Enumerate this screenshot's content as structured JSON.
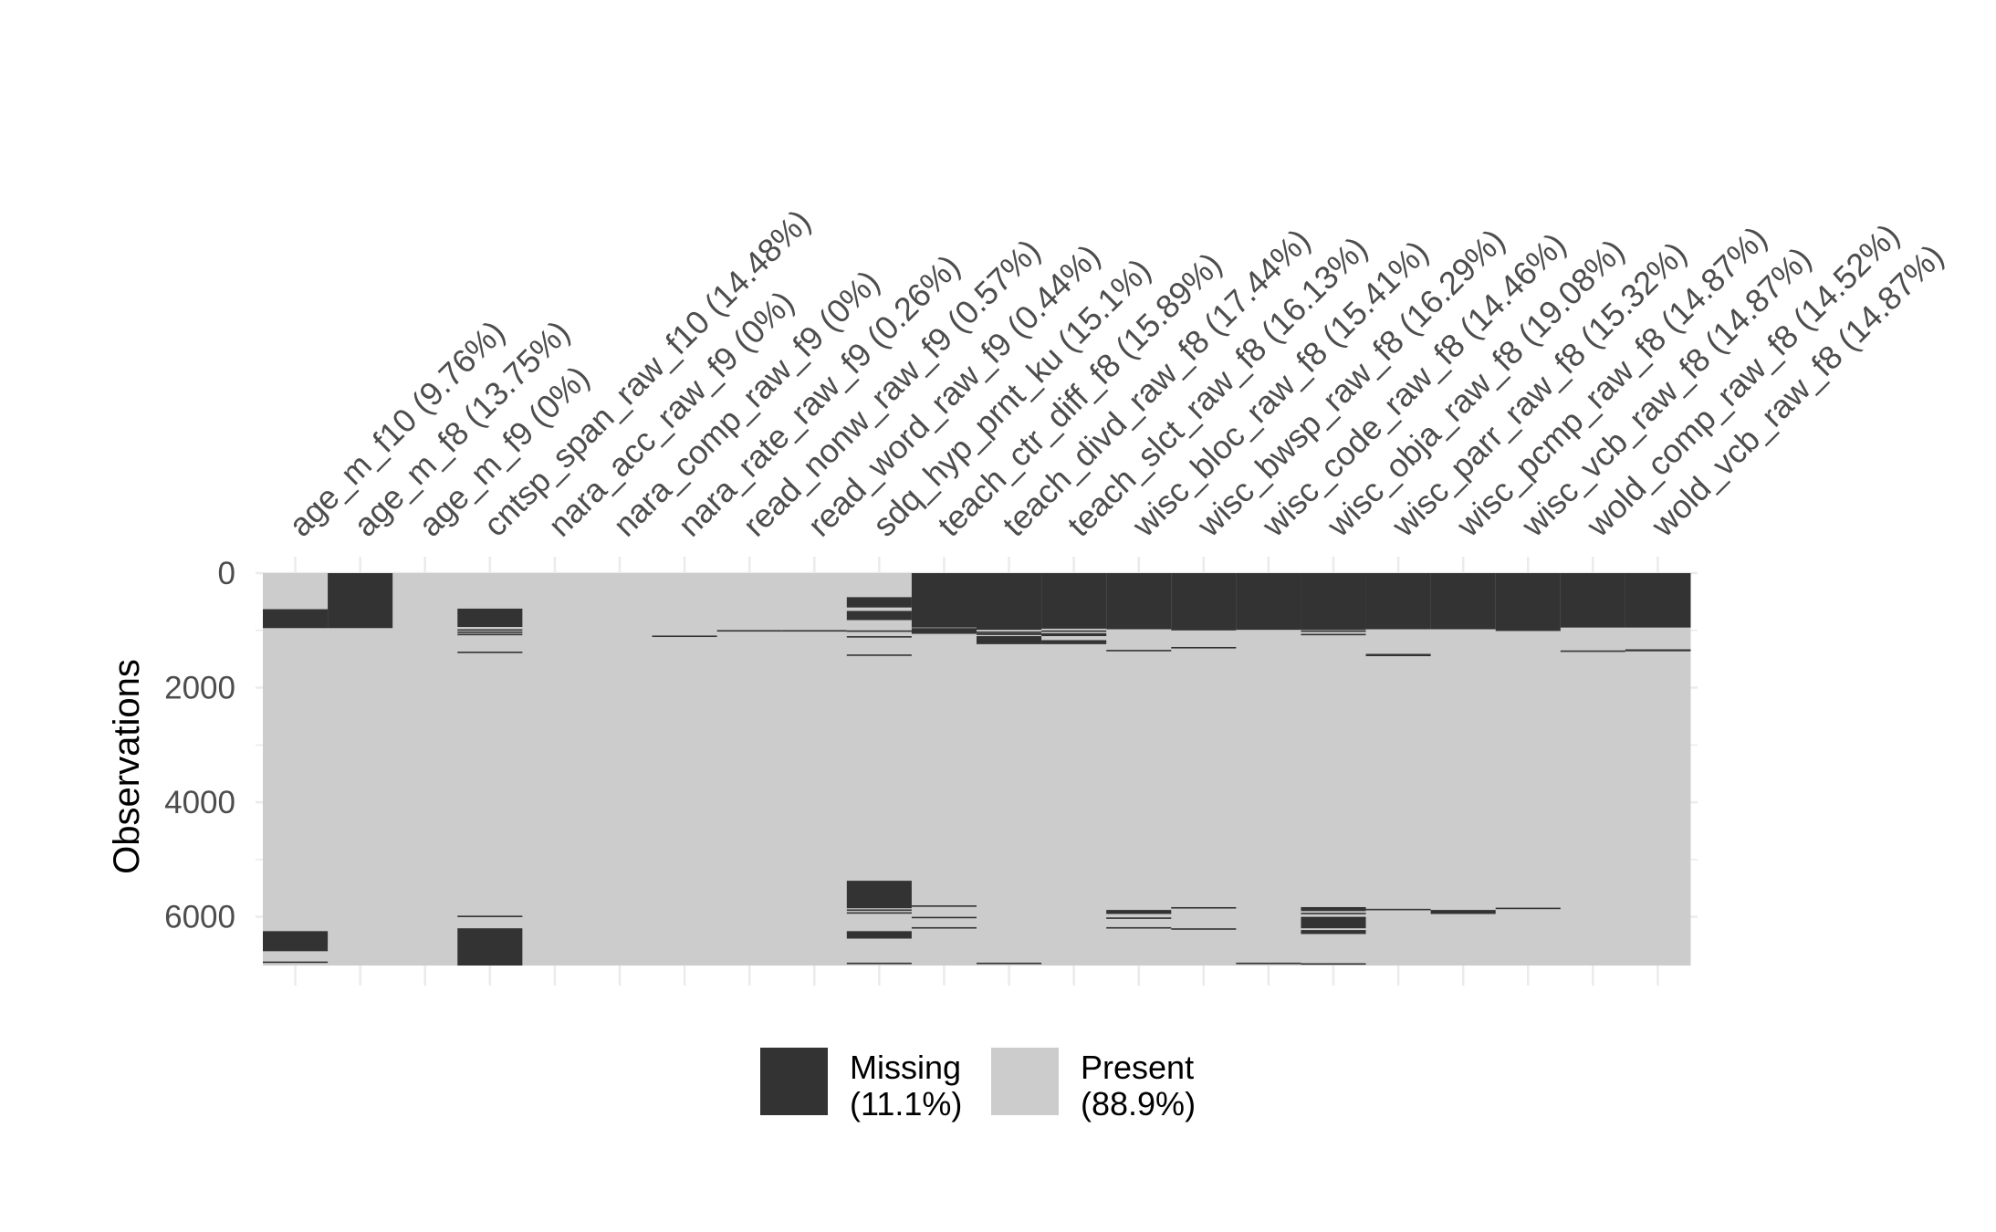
{
  "chart_data": {
    "type": "heatmap",
    "title": "",
    "xlabel": "",
    "ylabel": "Observations",
    "n_observations": 6850,
    "ylim": [
      0,
      6850
    ],
    "yticks": [
      0,
      2000,
      4000,
      6000
    ],
    "ytick_labels": [
      "0",
      "2000",
      "4000",
      "6000"
    ],
    "grid": true,
    "legend_position": "bottom",
    "colors": {
      "missing": "#333333",
      "present": "#cccccc",
      "grid": "#ebebeb"
    },
    "legend": [
      {
        "key": "missing",
        "label_line1": "Missing",
        "label_line2": "(11.1%)"
      },
      {
        "key": "present",
        "label_line1": "Present",
        "label_line2": "(88.9%)"
      }
    ],
    "variables": [
      {
        "label": "age_m_f10 (9.76%)",
        "missing": [
          [
            630,
            960
          ],
          [
            6250,
            6600
          ],
          [
            6780,
            6800
          ]
        ]
      },
      {
        "label": "age_m_f8 (13.75%)",
        "missing": [
          [
            0,
            960
          ]
        ]
      },
      {
        "label": "age_m_f9 (0%)",
        "missing": []
      },
      {
        "label": "cntsp_span_raw_f10 (14.48%)",
        "missing": [
          [
            620,
            940
          ],
          [
            980,
            1000
          ],
          [
            1020,
            1035
          ],
          [
            1060,
            1070
          ],
          [
            1370,
            1385
          ],
          [
            5980,
            5995
          ],
          [
            6200,
            6850
          ]
        ]
      },
      {
        "label": "nara_acc_raw_f9 (0%)",
        "missing": []
      },
      {
        "label": "nara_comp_raw_f9 (0%)",
        "missing": []
      },
      {
        "label": "nara_rate_raw_f9 (0.26%)",
        "missing": [
          [
            1090,
            1110
          ]
        ]
      },
      {
        "label": "read_nonw_raw_f9 (0.57%)",
        "missing": [
          [
            995,
            1010
          ]
        ]
      },
      {
        "label": "read_word_raw_f9 (0.44%)",
        "missing": [
          [
            995,
            1010
          ]
        ]
      },
      {
        "label": "sdq_hyp_prnt_ku (15.1%)",
        "missing": [
          [
            420,
            600
          ],
          [
            660,
            820
          ],
          [
            1000,
            1015
          ],
          [
            1100,
            1115
          ],
          [
            1420,
            1435
          ],
          [
            5370,
            5850
          ],
          [
            5870,
            5885
          ],
          [
            5920,
            5935
          ],
          [
            6250,
            6380
          ],
          [
            6800,
            6820
          ]
        ]
      },
      {
        "label": "teach_ctr_diff_f8 (15.89%)",
        "missing": [
          [
            0,
            950
          ],
          [
            960,
            1060
          ],
          [
            5800,
            5820
          ],
          [
            6000,
            6015
          ],
          [
            6180,
            6200
          ]
        ]
      },
      {
        "label": "teach_divd_raw_f8 (17.44%)",
        "missing": [
          [
            0,
            990
          ],
          [
            1020,
            1035
          ],
          [
            1050,
            1080
          ],
          [
            1100,
            1240
          ],
          [
            6800,
            6815
          ]
        ]
      },
      {
        "label": "teach_slct_raw_f8 (16.13%)",
        "missing": [
          [
            0,
            970
          ],
          [
            1000,
            1015
          ],
          [
            1050,
            1100
          ],
          [
            1170,
            1240
          ]
        ]
      },
      {
        "label": "wisc_bloc_raw_f8 (15.41%)",
        "missing": [
          [
            0,
            980
          ],
          [
            1340,
            1355
          ],
          [
            5880,
            5950
          ],
          [
            6010,
            6025
          ],
          [
            6180,
            6200
          ]
        ]
      },
      {
        "label": "wisc_bwsp_raw_f8 (16.29%)",
        "missing": [
          [
            0,
            1000
          ],
          [
            1290,
            1310
          ],
          [
            5830,
            5845
          ],
          [
            6200,
            6215
          ]
        ]
      },
      {
        "label": "wisc_code_raw_f8 (14.46%)",
        "missing": [
          [
            0,
            990
          ],
          [
            6800,
            6815
          ]
        ]
      },
      {
        "label": "wisc_obja_raw_f8 (19.08%)",
        "missing": [
          [
            0,
            990
          ],
          [
            1000,
            1015
          ],
          [
            1060,
            1075
          ],
          [
            5830,
            5900
          ],
          [
            5930,
            5950
          ],
          [
            6000,
            6200
          ],
          [
            6230,
            6300
          ],
          [
            6810,
            6825
          ]
        ]
      },
      {
        "label": "wisc_parr_raw_f8 (15.32%)",
        "missing": [
          [
            0,
            980
          ],
          [
            1410,
            1450
          ],
          [
            5860,
            5875
          ]
        ]
      },
      {
        "label": "wisc_pcmp_raw_f8 (14.87%)",
        "missing": [
          [
            0,
            980
          ],
          [
            5880,
            5950
          ]
        ]
      },
      {
        "label": "wisc_vcb_raw_f8 (14.87%)",
        "missing": [
          [
            0,
            1010
          ],
          [
            5840,
            5860
          ]
        ]
      },
      {
        "label": "wold_comp_raw_f8 (14.52%)",
        "missing": [
          [
            0,
            950
          ],
          [
            1350,
            1375
          ]
        ]
      },
      {
        "label": "wold_vcb_raw_f8 (14.87%)",
        "missing": [
          [
            0,
            950
          ],
          [
            1330,
            1365
          ]
        ]
      }
    ]
  }
}
